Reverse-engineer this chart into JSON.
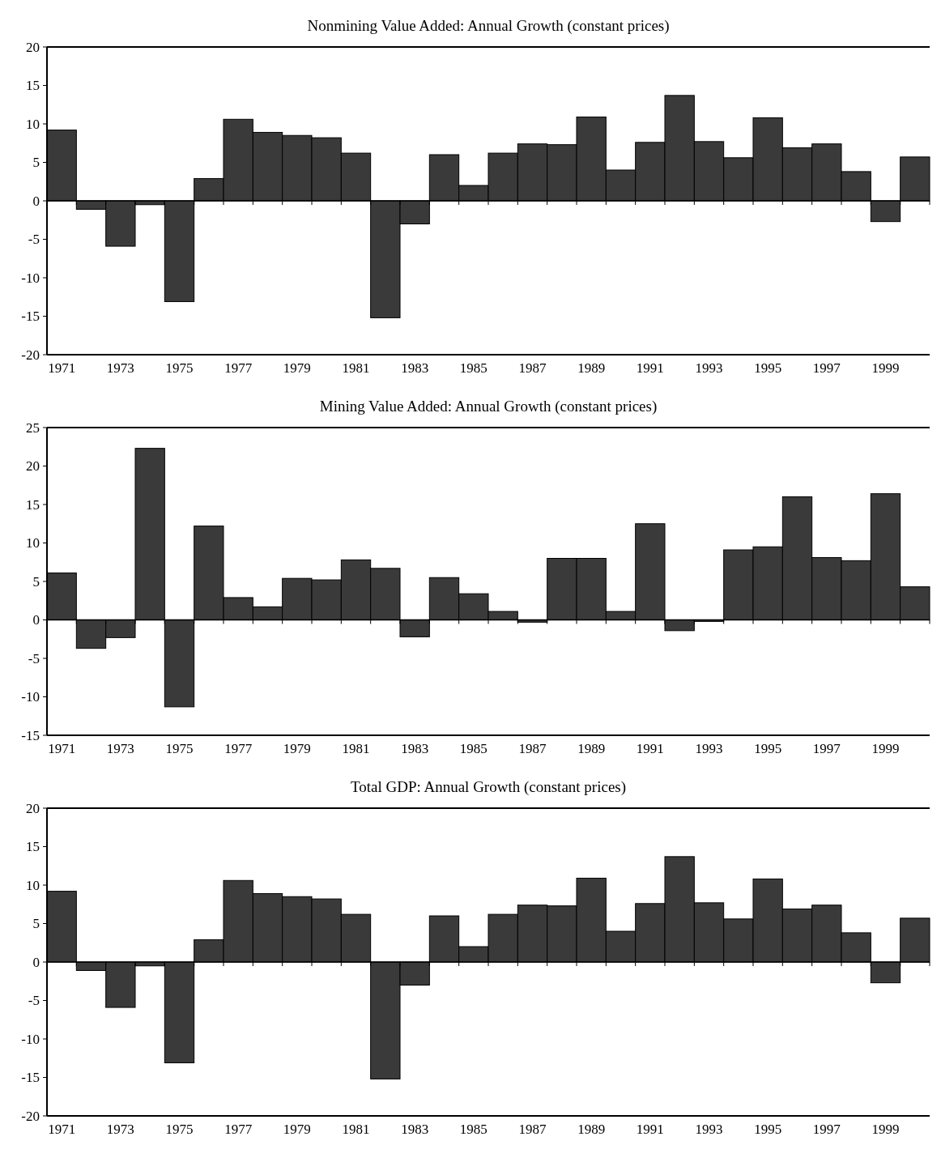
{
  "chart_data": [
    {
      "type": "bar",
      "title": "Nonmining Value Added: Annual Growth (constant prices)",
      "categories": [
        "1971",
        null,
        "1973",
        null,
        "1975",
        null,
        "1977",
        null,
        "1979",
        null,
        "1981",
        null,
        "1983",
        null,
        "1985",
        null,
        "1987",
        null,
        "1989",
        null,
        "1991",
        null,
        "1993",
        null,
        "1995",
        null,
        "1997",
        null,
        "1999",
        null
      ],
      "color": "#3a3a3a",
      "ylim": [
        -20,
        20
      ],
      "yticks": [
        -20,
        -15,
        -10,
        -5,
        0,
        5,
        10,
        15,
        20
      ],
      "values": [
        9.2,
        -1.1,
        -5.9,
        -0.5,
        -13.1,
        2.9,
        10.6,
        8.9,
        8.5,
        8.2,
        6.2,
        -15.2,
        -3.0,
        6.0,
        2.0,
        6.2,
        7.4,
        7.3,
        10.9,
        4.0,
        7.6,
        13.7,
        7.7,
        5.6,
        10.8,
        6.9,
        7.4,
        3.8,
        -2.7,
        5.7
      ]
    },
    {
      "type": "bar",
      "title": "Mining Value Added: Annual Growth (constant prices)",
      "categories": [
        "1971",
        null,
        "1973",
        null,
        "1975",
        null,
        "1977",
        null,
        "1979",
        null,
        "1981",
        null,
        "1983",
        null,
        "1985",
        null,
        "1987",
        null,
        "1989",
        null,
        "1991",
        null,
        "1993",
        null,
        "1995",
        null,
        "1997",
        null,
        "1999",
        null
      ],
      "color": "#3a3a3a",
      "ylim": [
        -15,
        25
      ],
      "yticks": [
        -15,
        -10,
        -5,
        0,
        5,
        10,
        15,
        20,
        25
      ],
      "values": [
        6.1,
        -3.7,
        -2.3,
        22.3,
        -11.3,
        12.2,
        2.9,
        1.7,
        5.4,
        5.2,
        7.8,
        6.7,
        -2.2,
        5.5,
        3.4,
        1.1,
        -0.3,
        8.0,
        8.0,
        1.1,
        12.5,
        -1.4,
        -0.2,
        9.1,
        9.5,
        16.0,
        8.1,
        7.7,
        16.4,
        4.3
      ]
    },
    {
      "type": "bar",
      "title": "Total GDP: Annual Growth (constant prices)",
      "categories": [
        "1971",
        null,
        "1973",
        null,
        "1975",
        null,
        "1977",
        null,
        "1979",
        null,
        "1981",
        null,
        "1983",
        null,
        "1985",
        null,
        "1987",
        null,
        "1989",
        null,
        "1991",
        null,
        "1993",
        null,
        "1995",
        null,
        "1997",
        null,
        "1999",
        null
      ],
      "color": "#3a3a3a",
      "ylim": [
        -20,
        20
      ],
      "yticks": [
        -20,
        -15,
        -10,
        -5,
        0,
        5,
        10,
        15,
        20
      ],
      "values": [
        9.2,
        -1.1,
        -5.9,
        -0.5,
        -13.1,
        2.9,
        10.6,
        8.9,
        8.5,
        8.2,
        6.2,
        -15.2,
        -3.0,
        6.0,
        2.0,
        6.2,
        7.4,
        7.3,
        10.9,
        4.0,
        7.6,
        13.7,
        7.7,
        5.6,
        10.8,
        6.9,
        7.4,
        3.8,
        -2.7,
        5.7
      ]
    }
  ]
}
